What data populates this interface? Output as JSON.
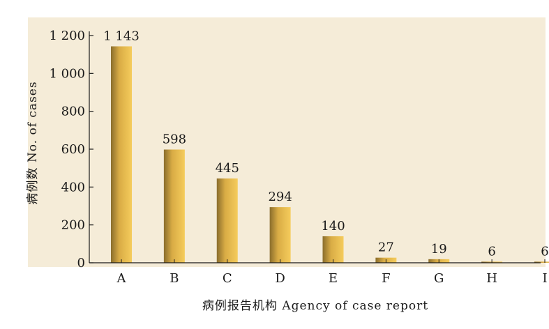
{
  "chart_data": {
    "type": "bar",
    "categories": [
      "A",
      "B",
      "C",
      "D",
      "E",
      "F",
      "G",
      "H",
      "I"
    ],
    "values": [
      1143,
      598,
      445,
      294,
      140,
      27,
      19,
      6,
      6
    ],
    "value_labels": [
      "1 143",
      "598",
      "445",
      "294",
      "140",
      "27",
      "19",
      "6",
      "6"
    ],
    "y_ticks": [
      0,
      200,
      400,
      600,
      800,
      1000,
      1200
    ],
    "y_tick_labels": [
      "0",
      "200",
      "400",
      "600",
      "800",
      "1 000",
      "1 200"
    ],
    "ylim": [
      0,
      1200
    ],
    "xlabel": "病例报告机构 Agency of case report",
    "ylabel": "病例数 No. of cases",
    "colors": {
      "panel_bg": "#f5ecd8",
      "bar_light": "#f5cc5c",
      "bar_dark": "#8a6d2c",
      "axis": "#1a1a1a"
    },
    "grid": false,
    "legend": "none"
  }
}
